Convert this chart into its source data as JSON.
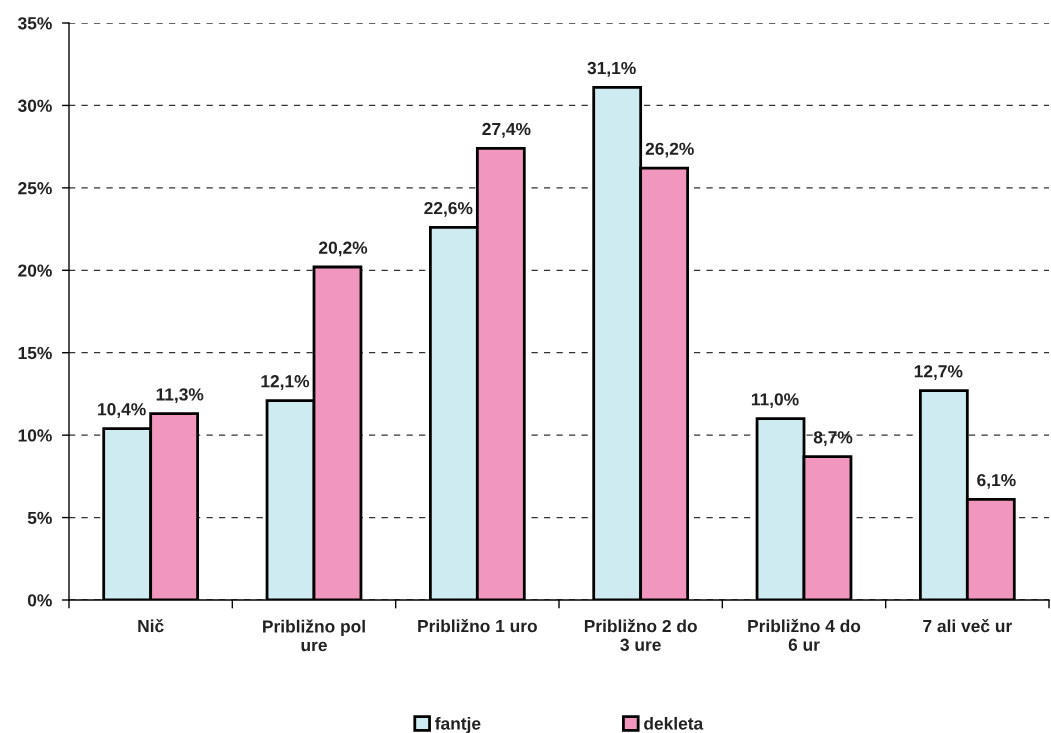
{
  "chart_data": {
    "type": "bar",
    "categories": [
      "Nič",
      "Približno pol\nure",
      "Približno 1 uro",
      "Približno 2 do\n3 ure",
      "Približno 4 do\n6 ur",
      "7 ali več ur"
    ],
    "series": [
      {
        "name": "fantje",
        "color": "#cdebf0",
        "values": [
          10.4,
          12.1,
          22.6,
          31.1,
          11.0,
          12.7
        ],
        "value_labels": [
          "10,4%",
          "12,1%",
          "22,6%",
          "31,1%",
          "11,0%",
          "12,7%"
        ]
      },
      {
        "name": "dekleta",
        "color": "#f197be",
        "values": [
          11.3,
          20.2,
          27.4,
          26.2,
          8.7,
          6.1
        ],
        "value_labels": [
          "11,3%",
          "20,2%",
          "27,4%",
          "26,2%",
          "8,7%",
          "6,1%"
        ]
      }
    ],
    "ylim": [
      0,
      35
    ],
    "yticks": [
      {
        "value": 0,
        "label": "0%"
      },
      {
        "value": 5,
        "label": "5%"
      },
      {
        "value": 10,
        "label": "10%"
      },
      {
        "value": 15,
        "label": "15%"
      },
      {
        "value": 20,
        "label": "20%"
      },
      {
        "value": 25,
        "label": "25%"
      },
      {
        "value": 30,
        "label": "30%"
      },
      {
        "value": 35,
        "label": "35%"
      }
    ],
    "grid": "y",
    "legend": "bottom"
  }
}
